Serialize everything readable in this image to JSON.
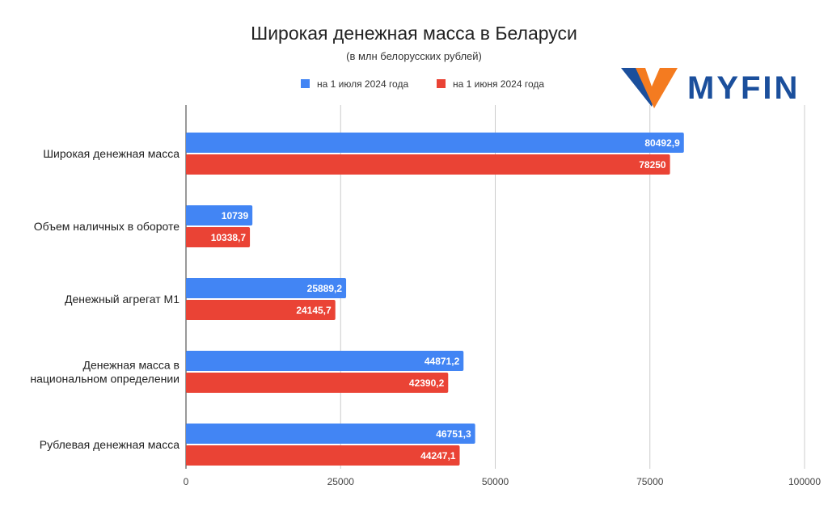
{
  "chart_data": {
    "type": "bar",
    "orientation": "horizontal",
    "title": "Широкая денежная масса в Беларуси",
    "subtitle": "(в млн белорусских рублей)",
    "categories": [
      "Широкая денежная масса",
      "Объем наличных в обороте",
      "Денежный агрегат М1",
      "Денежная масса в национальном определении",
      "Рублевая денежная масса"
    ],
    "series": [
      {
        "name": "на 1 июля 2024 года",
        "color": "#4285f4",
        "values": [
          80492.9,
          10739,
          25889.2,
          44871.2,
          46751.3
        ],
        "labels": [
          "80492,9",
          "10739",
          "25889,2",
          "44871,2",
          "46751,3"
        ]
      },
      {
        "name": "на 1 июня 2024 года",
        "color": "#ea4335",
        "values": [
          78250,
          10338.7,
          24145.7,
          42390.2,
          44247.1
        ],
        "labels": [
          "78250",
          "10338,7",
          "24145,7",
          "42390,2",
          "44247,1"
        ]
      }
    ],
    "xlim": [
      0,
      100000
    ],
    "xticks": [
      "0",
      "25000",
      "50000",
      "75000",
      "100000"
    ],
    "grid": true,
    "legend_position": "top"
  },
  "logo": {
    "text": "MYFIN",
    "colors": {
      "blue": "#1b4f9c",
      "orange": "#f47b20"
    }
  }
}
